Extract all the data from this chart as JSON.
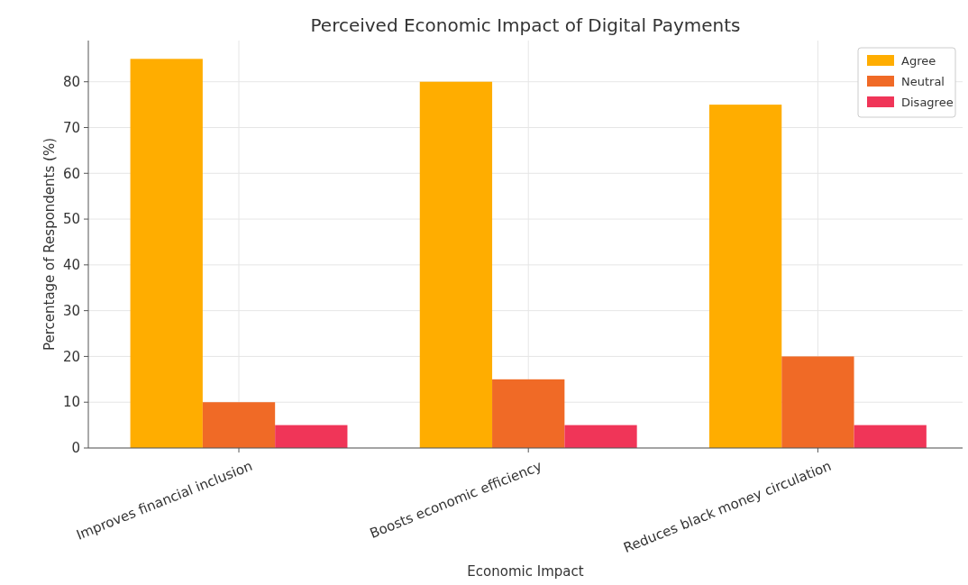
{
  "chart_data": {
    "type": "bar",
    "title": "Perceived Economic Impact of Digital Payments",
    "xlabel": "Economic Impact",
    "ylabel": "Percentage of Respondents (%)",
    "categories": [
      "Improves financial inclusion",
      "Boosts economic efficiency",
      "Reduces black money circulation"
    ],
    "series": [
      {
        "name": "Agree",
        "color": "#ffad00",
        "values": [
          85,
          80,
          75
        ]
      },
      {
        "name": "Neutral",
        "color": "#f06a26",
        "values": [
          10,
          15,
          20
        ]
      },
      {
        "name": "Disagree",
        "color": "#f03558",
        "values": [
          5,
          5,
          5
        ]
      }
    ],
    "ylim": [
      0,
      89
    ],
    "yticks": [
      0,
      10,
      20,
      30,
      40,
      50,
      60,
      70,
      80
    ],
    "grid": true,
    "legend": "top right"
  }
}
